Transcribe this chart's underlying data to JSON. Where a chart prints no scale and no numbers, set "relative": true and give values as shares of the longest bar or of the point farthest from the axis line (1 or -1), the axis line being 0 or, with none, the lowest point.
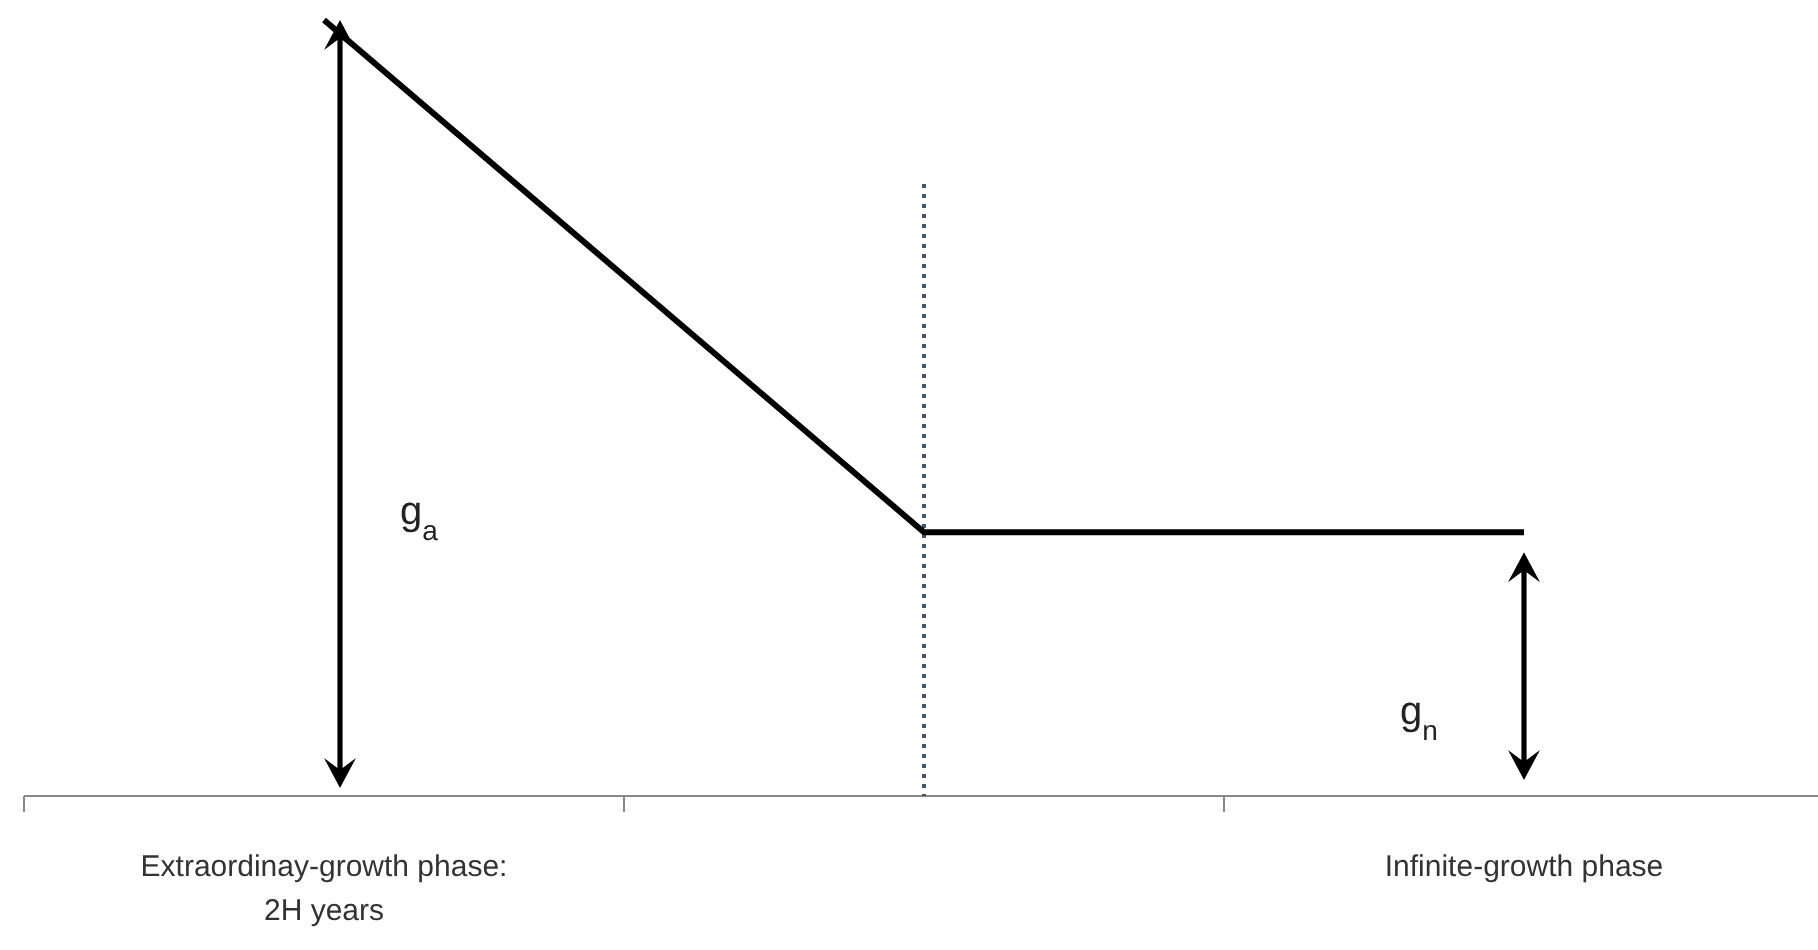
{
  "chart_data": {
    "type": "line",
    "relative": true,
    "categories": [
      "Extraordinay-growth phase: 2H years",
      null,
      "Infinite-growth phase"
    ],
    "series": [
      {
        "color": "#000000",
        "values": [
          1,
          0.34,
          0.34
        ]
      }
    ],
    "annotations": [
      "g$_{a}$",
      "g$_{n}$"
    ]
  }
}
